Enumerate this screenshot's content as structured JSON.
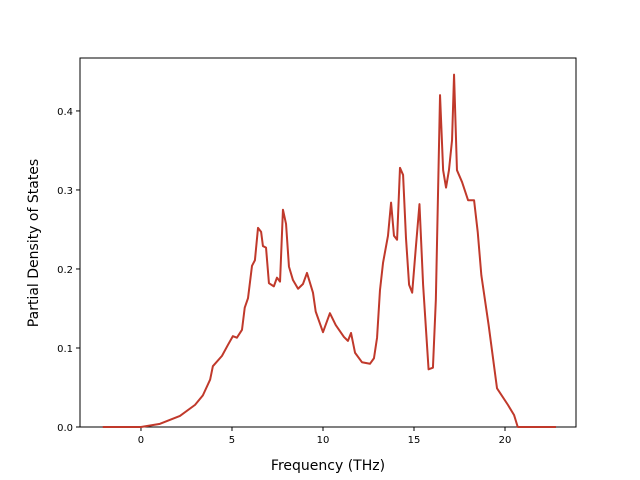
{
  "chart_data": {
    "type": "line",
    "xlabel": "Frequency (THz)",
    "ylabel": "Partial Density of States",
    "x": [
      -2.1,
      0,
      1.04,
      2.14,
      2.97,
      3.4,
      3.8,
      3.95,
      4.45,
      4.78,
      5.05,
      5.27,
      5.55,
      5.7,
      5.88,
      6.1,
      6.26,
      6.43,
      6.6,
      6.7,
      6.87,
      7.03,
      7.3,
      7.47,
      7.64,
      7.8,
      7.97,
      8.13,
      8.35,
      8.63,
      8.9,
      9.12,
      9.45,
      9.6,
      10,
      10.38,
      10.7,
      11.15,
      11.37,
      11.54,
      11.76,
      12.14,
      12.58,
      12.8,
      12.97,
      13.13,
      13.3,
      13.57,
      13.74,
      13.9,
      14.07,
      14.23,
      14.4,
      14.56,
      14.73,
      14.9,
      15.1,
      15.3,
      15.5,
      15.8,
      16.04,
      16.2,
      16.43,
      16.6,
      16.76,
      16.92,
      17.09,
      17.2,
      17.36,
      17.64,
      17.97,
      18.3,
      18.5,
      18.7,
      19.1,
      19.56,
      20.16,
      20.5,
      20.7,
      22.8
    ],
    "series": [
      {
        "color": "#c0392b",
        "values": [
          0,
          0,
          0.004,
          0.014,
          0.028,
          0.04,
          0.06,
          0.077,
          0.09,
          0.104,
          0.115,
          0.113,
          0.123,
          0.151,
          0.163,
          0.204,
          0.211,
          0.252,
          0.247,
          0.229,
          0.227,
          0.182,
          0.178,
          0.189,
          0.184,
          0.275,
          0.257,
          0.203,
          0.186,
          0.175,
          0.181,
          0.195,
          0.17,
          0.146,
          0.12,
          0.144,
          0.129,
          0.114,
          0.109,
          0.119,
          0.094,
          0.082,
          0.08,
          0.087,
          0.113,
          0.173,
          0.208,
          0.242,
          0.284,
          0.242,
          0.237,
          0.328,
          0.319,
          0.239,
          0.18,
          0.17,
          0.227,
          0.282,
          0.18,
          0.073,
          0.075,
          0.161,
          0.42,
          0.325,
          0.303,
          0.325,
          0.363,
          0.446,
          0.325,
          0.31,
          0.287,
          0.287,
          0.247,
          0.192,
          0.129,
          0.049,
          0.028,
          0.015,
          0,
          0
        ]
      }
    ],
    "xlim": [
      -3.35,
      23.9
    ],
    "ylim": [
      0,
      0.467
    ],
    "xticks": [
      0,
      5,
      10,
      15,
      20
    ],
    "yticks": [
      {
        "value": 0,
        "label": "0.0"
      },
      0.1,
      0.2,
      0.3,
      0.4
    ]
  }
}
